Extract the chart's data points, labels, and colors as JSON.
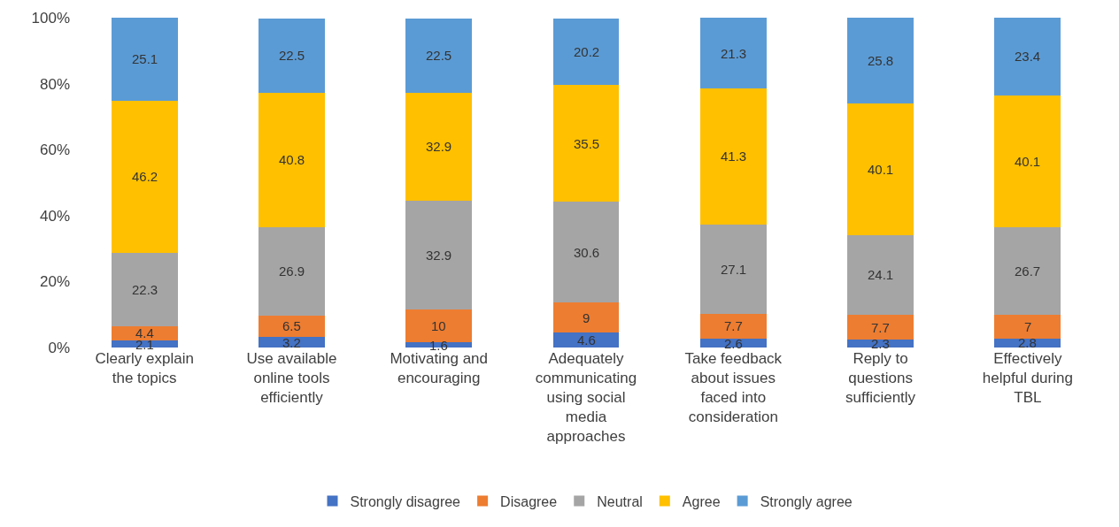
{
  "chart_data": {
    "type": "bar",
    "stacked": true,
    "data_labels": true,
    "legend": "bottom",
    "categories": [
      "Clearly explain the topics",
      "Use available online tools efficiently",
      "Motivating and encouraging",
      "Adequately communicating using social media approaches",
      "Take feedback about issues faced into consideration",
      "Reply to questions sufficiently",
      "Effectively helpful during TBL"
    ],
    "ylim": [
      0,
      100.1
    ],
    "yticks": [
      {
        "value": 0,
        "label": "0%"
      },
      {
        "value": 20,
        "label": "20%"
      },
      {
        "value": 40,
        "label": "40%"
      },
      {
        "value": 60,
        "label": "60%"
      },
      {
        "value": 80,
        "label": "80%"
      },
      {
        "value": 100,
        "label": "100%"
      }
    ],
    "series": [
      {
        "name": "Strongly disagree",
        "color": "#4472c4",
        "values": [
          2.1,
          3.2,
          1.6,
          4.6,
          2.6,
          2.3,
          2.8
        ]
      },
      {
        "name": "Disagree",
        "color": "#ed7d31",
        "values": [
          4.4,
          6.5,
          10,
          9,
          7.7,
          7.7,
          7
        ]
      },
      {
        "name": "Neutral",
        "color": "#a5a5a5",
        "values": [
          22.3,
          26.9,
          32.9,
          30.6,
          27.1,
          24.1,
          26.7
        ]
      },
      {
        "name": "Agree",
        "color": "#ffc000",
        "values": [
          46.2,
          40.8,
          32.9,
          35.5,
          41.3,
          40.1,
          40.1
        ]
      },
      {
        "name": "Strongly agree",
        "color": "#5b9bd5",
        "values": [
          25.1,
          22.5,
          22.5,
          20.2,
          21.3,
          25.8,
          23.4
        ]
      }
    ]
  }
}
